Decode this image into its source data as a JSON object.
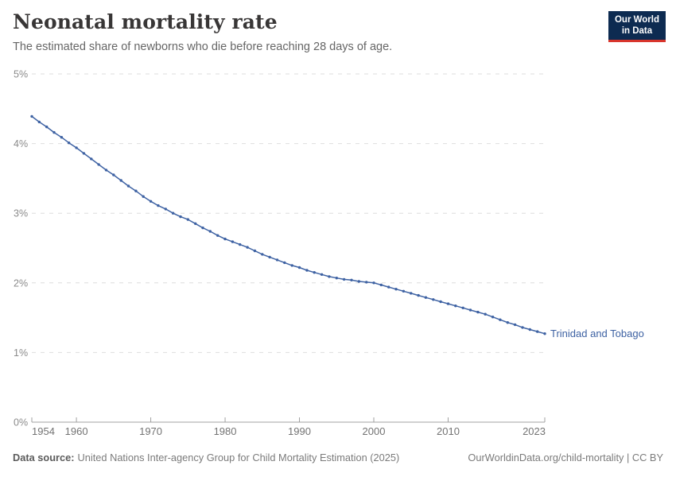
{
  "header": {
    "title": "Neonatal mortality rate",
    "subtitle": "The estimated share of newborns who die before reaching 28 days of age."
  },
  "logo": {
    "line1": "Our World",
    "line2": "in Data",
    "bg_color": "#0d2b51",
    "accent_color": "#d8352c"
  },
  "chart_data": {
    "type": "line",
    "title": "Neonatal mortality rate",
    "xlabel": "",
    "ylabel": "",
    "xlim": [
      1954,
      2023
    ],
    "ylim": [
      0,
      5
    ],
    "x_ticks": [
      1954,
      1960,
      1970,
      1980,
      1990,
      2000,
      2010,
      2023
    ],
    "y_tick_labels": [
      "0%",
      "1%",
      "2%",
      "3%",
      "4%",
      "5%"
    ],
    "grid": "horizontal-dashed",
    "legend": "end-of-line-label",
    "line_color": "#3e62a3",
    "grid_color": "#dedede",
    "axis_color": "#a0a0a0",
    "tick_label_color": "#737373",
    "y_label_color": "#8b8b8b",
    "series": [
      {
        "name": "Trinidad and Tobago",
        "x_start": 1954,
        "x_step": 1,
        "values": [
          4.39,
          4.31,
          4.24,
          4.16,
          4.09,
          4.01,
          3.94,
          3.86,
          3.78,
          3.7,
          3.62,
          3.55,
          3.47,
          3.39,
          3.32,
          3.24,
          3.17,
          3.11,
          3.06,
          3.0,
          2.95,
          2.91,
          2.85,
          2.79,
          2.74,
          2.68,
          2.63,
          2.59,
          2.55,
          2.51,
          2.46,
          2.41,
          2.37,
          2.33,
          2.29,
          2.25,
          2.22,
          2.18,
          2.15,
          2.12,
          2.09,
          2.07,
          2.05,
          2.04,
          2.02,
          2.01,
          2.0,
          1.97,
          1.94,
          1.91,
          1.88,
          1.85,
          1.82,
          1.79,
          1.76,
          1.73,
          1.7,
          1.67,
          1.64,
          1.61,
          1.58,
          1.55,
          1.51,
          1.47,
          1.43,
          1.4,
          1.36,
          1.33,
          1.3,
          1.27
        ]
      }
    ]
  },
  "footer": {
    "source_label": "Data source:",
    "source_text": "United Nations Inter-agency Group for Child Mortality Estimation (2025)",
    "right_text": "OurWorldinData.org/child-mortality | CC BY"
  }
}
